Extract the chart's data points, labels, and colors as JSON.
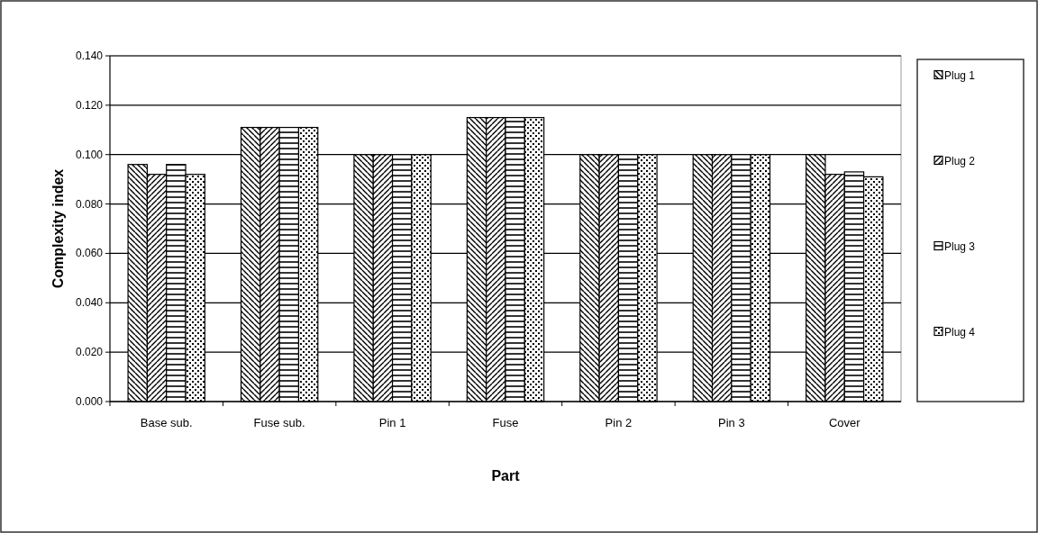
{
  "chart_data": {
    "type": "bar",
    "xlabel": "Part",
    "ylabel": "Complexity index",
    "categories": [
      "Base sub.",
      "Fuse sub.",
      "Pin 1",
      "Fuse",
      "Pin 2",
      "Pin 3",
      "Cover"
    ],
    "series": [
      {
        "name": "Plug 1",
        "color": "#000000",
        "values": [
          0.096,
          0.111,
          0.1,
          0.115,
          0.1,
          0.1,
          0.1
        ]
      },
      {
        "name": "Plug 2",
        "color": "#000000",
        "values": [
          0.092,
          0.111,
          0.1,
          0.115,
          0.1,
          0.1,
          0.092
        ]
      },
      {
        "name": "Plug 3",
        "color": "#000000",
        "values": [
          0.096,
          0.111,
          0.1,
          0.115,
          0.1,
          0.1,
          0.093
        ]
      },
      {
        "name": "Plug 4",
        "color": "#000000",
        "values": [
          0.092,
          0.111,
          0.1,
          0.115,
          0.1,
          0.1,
          0.091
        ]
      }
    ],
    "ylim": [
      0,
      0.14
    ],
    "yticks": [
      {
        "value": 0,
        "label": "0.000"
      },
      {
        "value": 0.02,
        "label": "0.020"
      },
      {
        "value": 0.04,
        "label": "0.040"
      },
      {
        "value": 0.06,
        "label": "0.060"
      },
      {
        "value": 0.08,
        "label": "0.080"
      },
      {
        "value": 0.1,
        "label": "0.100"
      },
      {
        "value": 0.12,
        "label": "0.120"
      },
      {
        "value": 0.14,
        "label": "0.140"
      }
    ],
    "grid": "y",
    "legend": "right"
  }
}
